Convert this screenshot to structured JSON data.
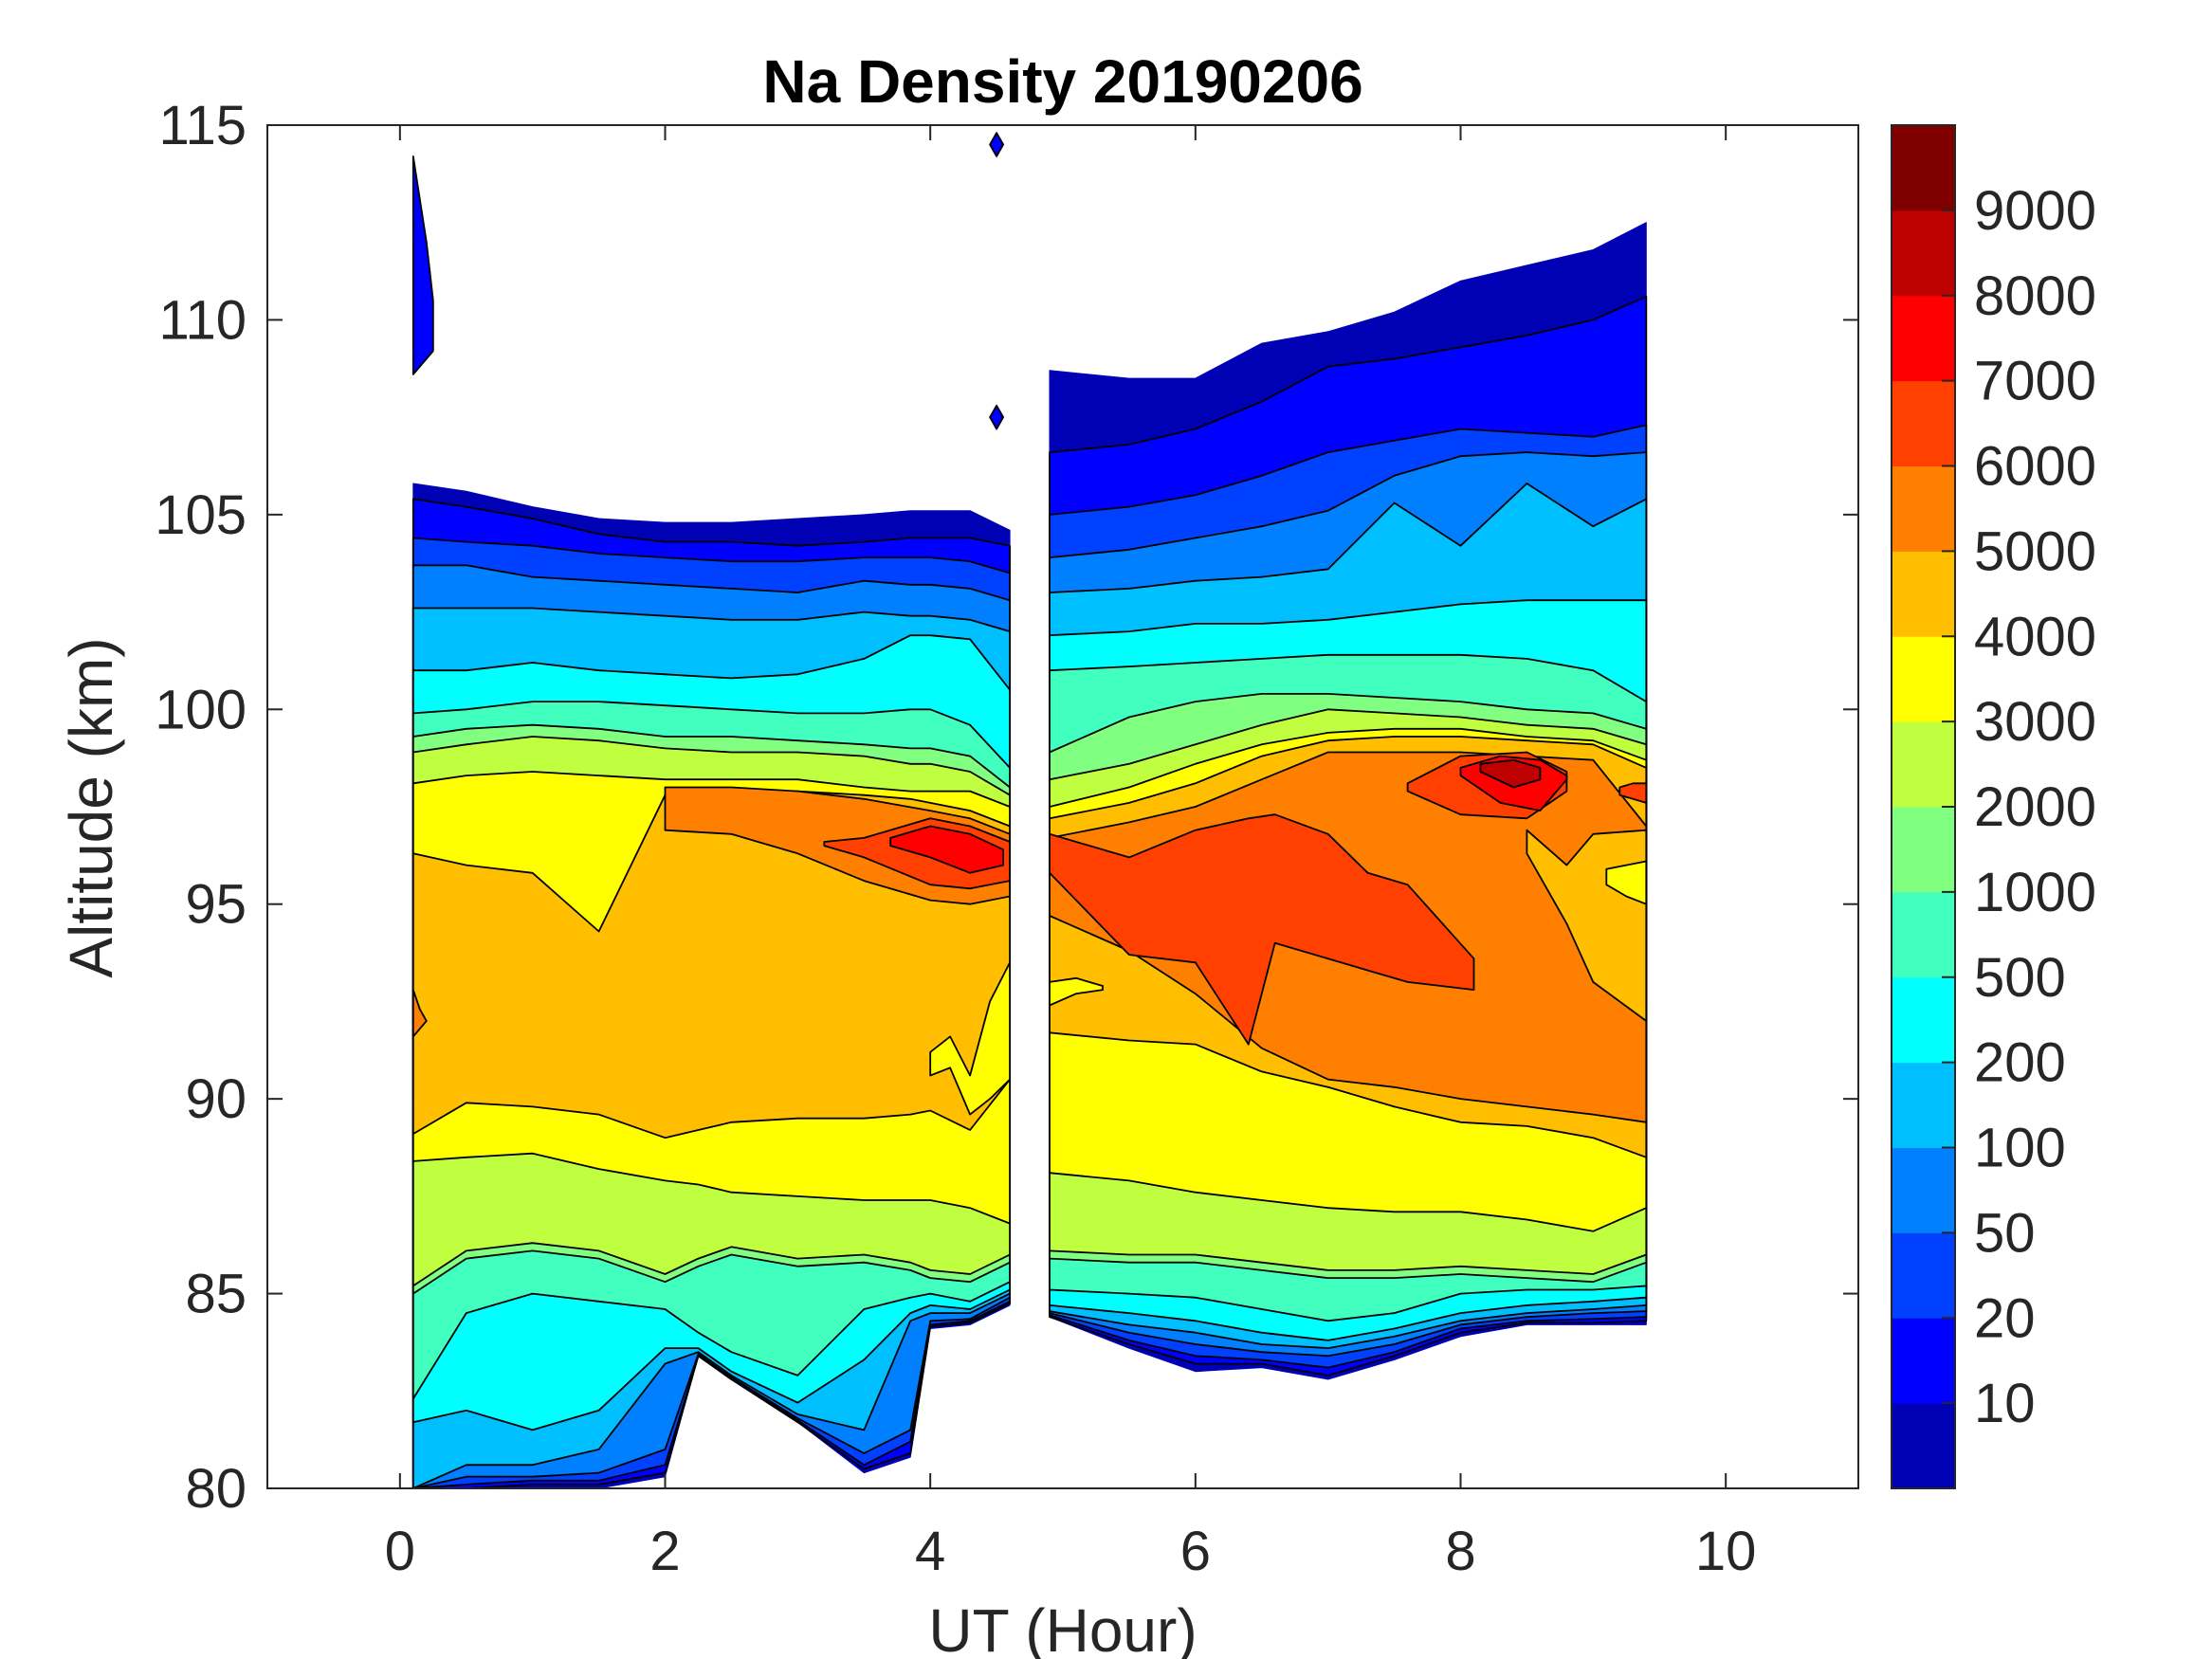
{
  "chart_data": {
    "type": "contour",
    "title": "Na Density 20190206",
    "xlabel": "UT (Hour)",
    "ylabel": "Altitude (km)",
    "xlim": [
      -1,
      11
    ],
    "ylim": [
      80,
      115
    ],
    "xticks": [
      0,
      2,
      4,
      6,
      8,
      10
    ],
    "xtick_labels": [
      "0",
      "2",
      "4",
      "6",
      "8",
      "10"
    ],
    "yticks": [
      80,
      85,
      90,
      95,
      100,
      105,
      110,
      115
    ],
    "ytick_labels": [
      "80",
      "85",
      "90",
      "95",
      "100",
      "105",
      "110",
      "115"
    ],
    "grid": false,
    "colorbar": {
      "placement": "right",
      "levels": [
        10,
        20,
        50,
        100,
        200,
        500,
        1000,
        2000,
        3000,
        4000,
        5000,
        6000,
        7000,
        8000,
        9000
      ],
      "labels": [
        "10",
        "20",
        "50",
        "100",
        "200",
        "500",
        "1000",
        "2000",
        "3000",
        "4000",
        "5000",
        "6000",
        "7000",
        "8000",
        "9000"
      ],
      "colors": [
        "#0000B4",
        "#0000FF",
        "#0040FF",
        "#0080FF",
        "#00BFFF",
        "#00FFFF",
        "#40FFBF",
        "#80FF80",
        "#BFFF40",
        "#FFFF00",
        "#FFBF00",
        "#FF8000",
        "#FF4000",
        "#FF0000",
        "#BF0000",
        "#800000"
      ]
    },
    "segments": [
      {
        "t": [
          0.1,
          0.5,
          1,
          1.5,
          2,
          2.25,
          2.5,
          3,
          3.5,
          3.85,
          4,
          4.3,
          4.6
        ],
        "top": [
          105.8,
          105.6,
          105.2,
          104.9,
          104.8,
          104.8,
          104.8,
          104.9,
          105.0,
          105.1,
          105.1,
          105.1,
          104.6
        ],
        "bottom": [
          80,
          80,
          80,
          80,
          80.3,
          83.4,
          82.8,
          81.7,
          80.4,
          80.8,
          84.1,
          84.2,
          84.7
        ],
        "upper": {
          "1": [
            105.4,
            105.2,
            104.9,
            104.5,
            104.3,
            104.3,
            104.3,
            104.2,
            104.3,
            104.4,
            104.4,
            104.4,
            104.2
          ],
          "2": [
            104.4,
            104.3,
            104.2,
            104.0,
            103.9,
            103.85,
            103.8,
            103.8,
            103.9,
            103.9,
            103.9,
            103.8,
            103.5
          ],
          "3": [
            103.7,
            103.7,
            103.4,
            103.3,
            103.2,
            103.15,
            103.1,
            103.0,
            103.3,
            103.2,
            103.2,
            103.1,
            102.8
          ],
          "4": [
            102.6,
            102.6,
            102.6,
            102.5,
            102.4,
            102.35,
            102.3,
            102.3,
            102.5,
            102.4,
            102.4,
            102.3,
            102.0
          ],
          "5": [
            101.0,
            101.0,
            101.2,
            101.0,
            100.9,
            100.85,
            100.8,
            100.9,
            101.3,
            101.9,
            101.9,
            101.8,
            100.5
          ],
          "6": [
            99.9,
            100.0,
            100.2,
            100.2,
            100.1,
            100.05,
            100.0,
            99.9,
            99.9,
            100.0,
            100.0,
            99.6,
            98.5
          ],
          "7": [
            99.3,
            99.5,
            99.6,
            99.5,
            99.3,
            99.3,
            99.3,
            99.2,
            99.1,
            99.0,
            99.0,
            98.8,
            98.0
          ],
          "8": [
            98.9,
            99.1,
            99.3,
            99.2,
            99.0,
            98.95,
            98.9,
            98.9,
            98.8,
            98.6,
            98.6,
            98.4,
            97.8
          ],
          "9": [
            98.1,
            98.3,
            98.4,
            98.3,
            98.2,
            98.2,
            98.2,
            98.2,
            98.0,
            97.9,
            97.9,
            97.9,
            97.5
          ],
          "10": [
            96.3,
            96.0,
            95.8,
            94.3,
            97.8,
            97.9,
            97.9,
            97.9,
            97.8,
            97.7,
            97.6,
            97.4,
            97.0
          ]
        },
        "lower": {
          "1": [
            80,
            80,
            80.1,
            80.1,
            80.4,
            83.4,
            82.8,
            81.7,
            80.5,
            80.9,
            84.15,
            84.25,
            84.75
          ],
          "2": [
            80,
            80.1,
            80.2,
            80.2,
            80.6,
            83.4,
            82.8,
            81.75,
            80.6,
            81.2,
            84.2,
            84.3,
            84.8
          ],
          "3": [
            80,
            80.3,
            80.3,
            80.4,
            81.0,
            83.45,
            82.85,
            81.8,
            80.9,
            81.5,
            84.3,
            84.35,
            84.9
          ],
          "4": [
            80.0,
            80.6,
            80.6,
            81.0,
            83.2,
            83.5,
            82.9,
            81.9,
            81.5,
            84.3,
            84.5,
            84.5,
            85.0
          ],
          "5": [
            81.7,
            82.0,
            81.5,
            82.0,
            83.6,
            83.6,
            83.0,
            82.2,
            83.3,
            84.5,
            84.7,
            84.6,
            85.1
          ],
          "6": [
            82.3,
            84.5,
            85.0,
            84.8,
            84.6,
            84.0,
            83.5,
            82.9,
            84.6,
            84.9,
            85.0,
            84.8,
            85.3
          ],
          "7": [
            85.0,
            85.9,
            86.1,
            85.9,
            85.3,
            85.7,
            86.0,
            85.7,
            85.8,
            85.6,
            85.4,
            85.3,
            85.8
          ],
          "8": [
            85.2,
            86.1,
            86.3,
            86.1,
            85.5,
            85.9,
            86.2,
            85.9,
            86.0,
            85.8,
            85.6,
            85.5,
            86.0
          ],
          "9": [
            88.4,
            88.5,
            88.6,
            88.2,
            87.9,
            87.8,
            87.6,
            87.5,
            87.4,
            87.4,
            87.4,
            87.2,
            86.8
          ],
          "10": [
            89.1,
            89.9,
            89.8,
            89.6,
            89.0,
            89.2,
            89.4,
            89.5,
            89.5,
            89.6,
            89.7,
            89.2,
            90.5
          ]
        }
      },
      {
        "t": [
          4.9,
          5.5,
          6,
          6.5,
          7,
          7.5,
          8,
          8.5,
          9,
          9.4
        ],
        "top": [
          108.7,
          108.5,
          108.5,
          109.4,
          109.7,
          110.2,
          111.0,
          111.4,
          111.8,
          112.5
        ],
        "bottom": [
          84.4,
          83.6,
          83.0,
          83.1,
          82.8,
          83.3,
          83.9,
          84.2,
          84.2,
          84.2
        ],
        "upper": {
          "1": [
            106.6,
            106.8,
            107.2,
            107.9,
            108.8,
            109.0,
            109.3,
            109.6,
            110.0,
            110.6
          ],
          "2": [
            105.0,
            105.2,
            105.5,
            106.0,
            106.6,
            106.9,
            107.2,
            107.1,
            107.0,
            107.3
          ],
          "3": [
            103.9,
            104.1,
            104.4,
            104.7,
            105.1,
            106.0,
            106.5,
            106.6,
            106.5,
            106.6
          ],
          "4": [
            103.0,
            103.1,
            103.3,
            103.4,
            103.6,
            105.3,
            104.2,
            105.8,
            104.7,
            105.4
          ],
          "5": [
            101.9,
            102.0,
            102.2,
            102.2,
            102.3,
            102.5,
            102.7,
            102.8,
            102.8,
            102.8
          ],
          "6": [
            101.0,
            101.1,
            101.2,
            101.3,
            101.4,
            101.4,
            101.4,
            101.3,
            101.0,
            100.2
          ],
          "7": [
            98.9,
            99.8,
            100.2,
            100.4,
            100.4,
            100.3,
            100.2,
            100.0,
            99.9,
            99.5
          ],
          "8": [
            98.2,
            98.6,
            99.1,
            99.6,
            100.0,
            99.9,
            99.8,
            99.6,
            99.5,
            99.1
          ],
          "9": [
            97.5,
            98.0,
            98.6,
            99.1,
            99.4,
            99.5,
            99.5,
            99.3,
            99.2,
            98.7
          ],
          "10": [
            97.2,
            97.6,
            98.1,
            98.8,
            99.2,
            99.3,
            99.3,
            99.2,
            99.1,
            98.5
          ],
          "11": [
            96.7,
            97.1,
            97.5,
            98.2,
            98.9,
            98.9,
            98.9,
            98.8,
            98.7,
            97.0
          ]
        },
        "lower": {
          "1": [
            84.4,
            83.7,
            83.2,
            83.2,
            82.9,
            83.4,
            84.0,
            84.25,
            84.25,
            84.3
          ],
          "2": [
            84.45,
            83.8,
            83.4,
            83.3,
            83.1,
            83.5,
            84.1,
            84.3,
            84.35,
            84.4
          ],
          "3": [
            84.5,
            84.0,
            83.7,
            83.5,
            83.4,
            83.7,
            84.2,
            84.4,
            84.5,
            84.55
          ],
          "4": [
            84.55,
            84.2,
            84.0,
            83.7,
            83.6,
            83.9,
            84.3,
            84.5,
            84.6,
            84.7
          ],
          "5": [
            84.7,
            84.5,
            84.3,
            84.0,
            83.8,
            84.1,
            84.5,
            84.7,
            84.8,
            84.9
          ],
          "6": [
            85.1,
            85.0,
            84.9,
            84.6,
            84.3,
            84.5,
            85.0,
            85.1,
            85.1,
            85.2
          ],
          "7": [
            85.9,
            85.8,
            85.8,
            85.6,
            85.4,
            85.4,
            85.5,
            85.4,
            85.3,
            85.8
          ],
          "8": [
            86.1,
            86.0,
            86.0,
            85.8,
            85.6,
            85.6,
            85.7,
            85.6,
            85.5,
            86.0
          ],
          "9": [
            88.1,
            87.9,
            87.6,
            87.4,
            87.2,
            87.1,
            87.1,
            86.9,
            86.6,
            87.2
          ],
          "10": [
            91.7,
            91.5,
            91.4,
            90.7,
            90.3,
            89.8,
            89.4,
            89.3,
            89.0,
            88.5
          ],
          "11": [
            94.7,
            93.8,
            92.7,
            91.3,
            90.5,
            90.3,
            90.0,
            89.8,
            89.6,
            89.4
          ]
        }
      }
    ],
    "patches": [
      {
        "level": 11,
        "t": [
          2.0,
          2.5,
          3.0,
          3.5,
          4.0,
          4.3,
          4.6
        ],
        "upper": [
          98.0,
          98.0,
          97.9,
          97.7,
          97.4,
          97.2,
          96.8
        ],
        "lower": [
          96.9,
          96.8,
          96.3,
          95.6,
          95.1,
          95.0,
          95.2
        ]
      },
      {
        "level": 12,
        "t": [
          3.2,
          3.5,
          4.0,
          4.3,
          4.6
        ],
        "upper": [
          96.6,
          96.7,
          97.2,
          97.0,
          96.6
        ],
        "lower": [
          96.5,
          96.2,
          95.5,
          95.4,
          95.6
        ]
      },
      {
        "level": 13,
        "t": [
          3.7,
          4.0,
          4.3,
          4.55
        ],
        "upper": [
          96.7,
          97.0,
          96.8,
          96.4
        ],
        "lower": [
          96.5,
          96.2,
          95.8,
          96.0
        ]
      },
      {
        "level": 11,
        "t": [
          0.1,
          0.15,
          0.2
        ],
        "upper": [
          92.8,
          92.3,
          92.0
        ],
        "lower": [
          91.6,
          91.8,
          92.0
        ]
      },
      {
        "level": 9,
        "t": [
          4.0,
          4.15,
          4.3,
          4.45,
          4.6
        ],
        "upper": [
          91.2,
          91.6,
          90.6,
          92.5,
          93.5
        ],
        "lower": [
          90.6,
          90.8,
          89.6,
          90.0,
          90.5
        ]
      },
      {
        "level": 12,
        "t": [
          4.9,
          5.5,
          6.0,
          6.4,
          6.6,
          7.0,
          7.3,
          7.6,
          8.1
        ],
        "upper": [
          96.8,
          96.2,
          96.9,
          97.2,
          97.3,
          96.8,
          95.8,
          95.5,
          93.6
        ],
        "lower": [
          95.8,
          93.7,
          93.5,
          91.4,
          94.0,
          93.6,
          93.3,
          93.0,
          92.8
        ]
      },
      {
        "level": 10,
        "t": [
          8.5,
          8.8,
          9.0,
          9.4
        ],
        "upper": [
          96.9,
          96.0,
          96.8,
          96.9
        ],
        "lower": [
          96.3,
          94.5,
          93.0,
          92.0
        ]
      },
      {
        "level": 9,
        "t": [
          9.1,
          9.25,
          9.4
        ],
        "upper": [
          95.9,
          96.0,
          96.1
        ],
        "lower": [
          95.5,
          95.2,
          95.0
        ]
      },
      {
        "level": 9,
        "t": [
          4.9,
          5.1,
          5.3
        ],
        "upper": [
          93.0,
          93.1,
          92.9
        ],
        "lower": [
          92.4,
          92.7,
          92.8
        ]
      },
      {
        "level": 12,
        "t": [
          7.6,
          8.0,
          8.5,
          8.8
        ],
        "upper": [
          98.1,
          98.8,
          98.9,
          98.4
        ],
        "lower": [
          97.9,
          97.3,
          97.2,
          97.9
        ]
      },
      {
        "level": 12,
        "t": [
          9.2,
          9.3,
          9.4
        ],
        "upper": [
          98.0,
          98.1,
          98.1
        ],
        "lower": [
          97.8,
          97.7,
          97.6
        ]
      },
      {
        "level": 13,
        "t": [
          8.0,
          8.3,
          8.6,
          8.8
        ],
        "upper": [
          98.5,
          98.8,
          98.7,
          98.3
        ],
        "lower": [
          98.3,
          97.6,
          97.4,
          98.2
        ]
      },
      {
        "level": 14,
        "t": [
          8.15,
          8.4,
          8.6
        ],
        "upper": [
          98.6,
          98.7,
          98.5
        ],
        "lower": [
          98.4,
          98.0,
          98.2
        ]
      },
      {
        "level": 1,
        "t": [
          0.1,
          0.2,
          0.25
        ],
        "upper": [
          114.2,
          112.0,
          110.5
        ],
        "lower": [
          108.6,
          109.0,
          109.2
        ]
      },
      {
        "level": 1,
        "t": [
          4.45,
          4.5,
          4.55
        ],
        "upper": [
          114.5,
          114.8,
          114.5
        ],
        "lower": [
          114.5,
          114.2,
          114.5
        ]
      },
      {
        "level": 1,
        "t": [
          4.45,
          4.5,
          4.55
        ],
        "upper": [
          107.5,
          107.8,
          107.5
        ],
        "lower": [
          107.5,
          107.2,
          107.5
        ]
      }
    ]
  }
}
